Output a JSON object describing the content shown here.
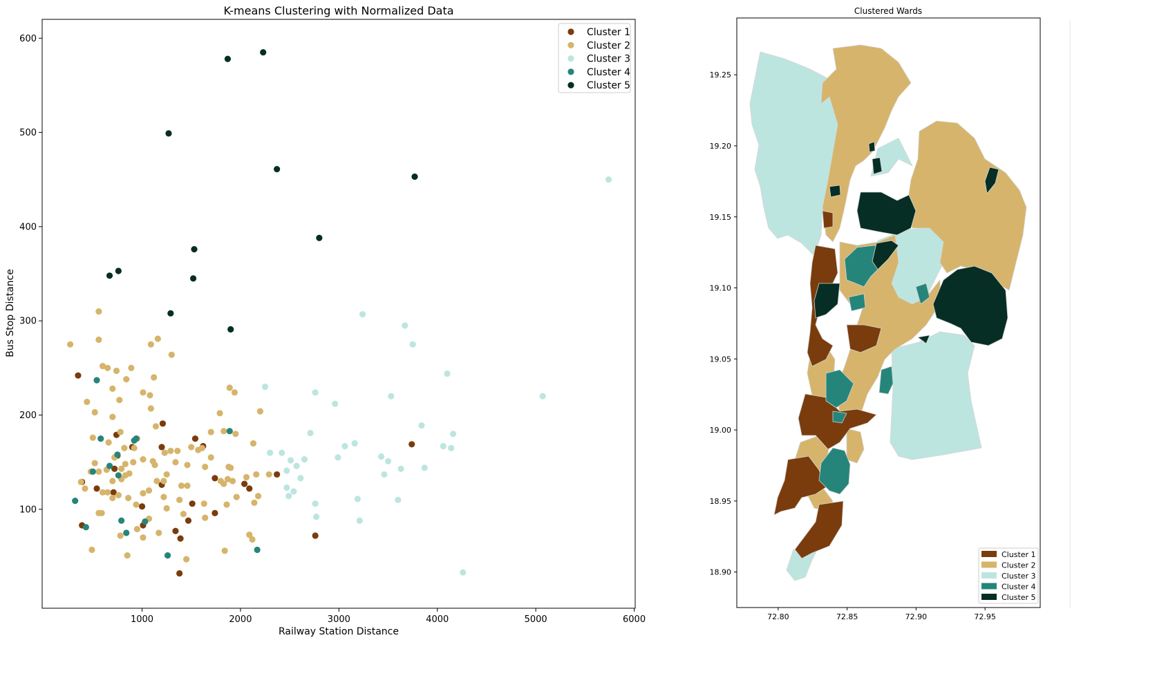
{
  "colors": {
    "cluster_1": "#7a3c0d",
    "cluster_2": "#d6b46b",
    "cluster_3": "#bde5e0",
    "cluster_4": "#26857a",
    "cluster_5": "#062e24",
    "ward_border": "#d4d4d4",
    "axes": "#000000"
  },
  "chart_data": [
    {
      "type": "scatter",
      "title": "K-means Clustering with Normalized Data",
      "xlabel": "Railway Station Distance",
      "ylabel": "Bus Stop Distance",
      "xlim": [
        0,
        6000
      ],
      "ylim": [
        0,
        620
      ],
      "xticks": [
        1000,
        2000,
        3000,
        4000,
        5000,
        6000
      ],
      "yticks": [
        100,
        200,
        300,
        400,
        500,
        600
      ],
      "grid": false,
      "legend_position": "top-right",
      "legend": [
        "Cluster 1",
        "Cluster 2",
        "Cluster 3",
        "Cluster 4",
        "Cluster 5"
      ],
      "series": [
        {
          "name": "Cluster 1",
          "color": "#7a3c0d",
          "points": [
            [
              350,
              242
            ],
            [
              390,
              129
            ],
            [
              390,
              83
            ],
            [
              540,
              122
            ],
            [
              740,
              179
            ],
            [
              750,
              157
            ],
            [
              720,
              143
            ],
            [
              710,
              118
            ],
            [
              900,
              166
            ],
            [
              1000,
              103
            ],
            [
              1010,
              83
            ],
            [
              1200,
              166
            ],
            [
              1210,
              191
            ],
            [
              1200,
              126
            ],
            [
              1340,
              77
            ],
            [
              1390,
              69
            ],
            [
              1380,
              32
            ],
            [
              1470,
              88
            ],
            [
              1510,
              106
            ],
            [
              1540,
              175
            ],
            [
              1620,
              167
            ],
            [
              1740,
              133
            ],
            [
              1740,
              96
            ],
            [
              2040,
              127
            ],
            [
              2090,
              122
            ],
            [
              2370,
              137
            ],
            [
              2760,
              72
            ],
            [
              3740,
              169
            ]
          ]
        },
        {
          "name": "Cluster 2",
          "color": "#d6b46b",
          "points": [
            [
              270,
              275
            ],
            [
              560,
              280
            ],
            [
              560,
              310
            ],
            [
              600,
              252
            ],
            [
              650,
              250
            ],
            [
              740,
              247
            ],
            [
              890,
              250
            ],
            [
              840,
              238
            ],
            [
              1090,
              275
            ],
            [
              1160,
              281
            ],
            [
              1300,
              264
            ],
            [
              1120,
              240
            ],
            [
              1010,
              224
            ],
            [
              1080,
              221
            ],
            [
              700,
              228
            ],
            [
              770,
              216
            ],
            [
              440,
              214
            ],
            [
              520,
              203
            ],
            [
              700,
              198
            ],
            [
              1090,
              207
            ],
            [
              1140,
              188
            ],
            [
              780,
              182
            ],
            [
              660,
              171
            ],
            [
              500,
              176
            ],
            [
              820,
              165
            ],
            [
              950,
              175
            ],
            [
              1010,
              153
            ],
            [
              1110,
              151
            ],
            [
              1130,
              147
            ],
            [
              1230,
              160
            ],
            [
              1290,
              162
            ],
            [
              1360,
              162
            ],
            [
              1500,
              166
            ],
            [
              1610,
              165
            ],
            [
              1700,
              155
            ],
            [
              1570,
              163
            ],
            [
              1640,
              145
            ],
            [
              1460,
              147
            ],
            [
              1340,
              150
            ],
            [
              1250,
              137
            ],
            [
              1220,
              130
            ],
            [
              1150,
              130
            ],
            [
              1070,
              120
            ],
            [
              1010,
              117
            ],
            [
              940,
              105
            ],
            [
              860,
              112
            ],
            [
              760,
              115
            ],
            [
              700,
              130
            ],
            [
              640,
              142
            ],
            [
              560,
              140
            ],
            [
              480,
              140
            ],
            [
              520,
              149
            ],
            [
              720,
              155
            ],
            [
              830,
              148
            ],
            [
              870,
              138
            ],
            [
              910,
              150
            ],
            [
              920,
              165
            ],
            [
              790,
              132
            ],
            [
              790,
              143
            ],
            [
              830,
              136
            ],
            [
              650,
              118
            ],
            [
              590,
              96
            ],
            [
              560,
              96
            ],
            [
              600,
              118
            ],
            [
              700,
              112
            ],
            [
              1010,
              70
            ],
            [
              1070,
              90
            ],
            [
              950,
              79
            ],
            [
              780,
              72
            ],
            [
              850,
              51
            ],
            [
              490,
              57
            ],
            [
              1170,
              75
            ],
            [
              1250,
              101
            ],
            [
              1220,
              113
            ],
            [
              1380,
              110
            ],
            [
              1400,
              125
            ],
            [
              1460,
              125
            ],
            [
              1420,
              95
            ],
            [
              1450,
              47
            ],
            [
              1630,
              106
            ],
            [
              1640,
              91
            ],
            [
              1700,
              182
            ],
            [
              1790,
              202
            ],
            [
              1830,
              183
            ],
            [
              1880,
              145
            ],
            [
              1900,
              144
            ],
            [
              1870,
              132
            ],
            [
              1830,
              127
            ],
            [
              1860,
              105
            ],
            [
              1920,
              130
            ],
            [
              1960,
              113
            ],
            [
              1840,
              56
            ],
            [
              2090,
              73
            ],
            [
              2120,
              68
            ],
            [
              2060,
              134
            ],
            [
              2160,
              137
            ],
            [
              2180,
              114
            ],
            [
              2140,
              107
            ],
            [
              2130,
              170
            ],
            [
              1950,
              180
            ],
            [
              1890,
              229
            ],
            [
              1940,
              224
            ],
            [
              2200,
              204
            ],
            [
              2290,
              137
            ],
            [
              1800,
              130
            ],
            [
              420,
              122
            ],
            [
              380,
              129
            ]
          ]
        },
        {
          "name": "Cluster 3",
          "color": "#bde5e0",
          "points": [
            [
              2250,
              230
            ],
            [
              2300,
              160
            ],
            [
              2420,
              160
            ],
            [
              2470,
              141
            ],
            [
              2510,
              152
            ],
            [
              2570,
              146
            ],
            [
              2610,
              133
            ],
            [
              2470,
              123
            ],
            [
              2540,
              119
            ],
            [
              2490,
              114
            ],
            [
              2650,
              153
            ],
            [
              2710,
              181
            ],
            [
              2760,
              224
            ],
            [
              2760,
              106
            ],
            [
              2770,
              92
            ],
            [
              2960,
              212
            ],
            [
              2990,
              155
            ],
            [
              3060,
              167
            ],
            [
              3160,
              170
            ],
            [
              3190,
              111
            ],
            [
              3210,
              88
            ],
            [
              3240,
              307
            ],
            [
              3430,
              156
            ],
            [
              3460,
              137
            ],
            [
              3500,
              151
            ],
            [
              3530,
              220
            ],
            [
              3600,
              110
            ],
            [
              3630,
              143
            ],
            [
              3670,
              295
            ],
            [
              3750,
              275
            ],
            [
              3840,
              189
            ],
            [
              3870,
              144
            ],
            [
              4060,
              167
            ],
            [
              4100,
              244
            ],
            [
              4140,
              165
            ],
            [
              4160,
              180
            ],
            [
              4260,
              33
            ],
            [
              5070,
              220
            ],
            [
              5740,
              450
            ]
          ]
        },
        {
          "name": "Cluster 4",
          "color": "#26857a",
          "points": [
            [
              320,
              109
            ],
            [
              430,
              81
            ],
            [
              500,
              140
            ],
            [
              540,
              237
            ],
            [
              580,
              175
            ],
            [
              670,
              146
            ],
            [
              750,
              158
            ],
            [
              760,
              136
            ],
            [
              790,
              88
            ],
            [
              840,
              75
            ],
            [
              920,
              173
            ],
            [
              940,
              175
            ],
            [
              1030,
              87
            ],
            [
              1260,
              51
            ],
            [
              1890,
              183
            ],
            [
              2170,
              57
            ]
          ]
        },
        {
          "name": "Cluster 5",
          "color": "#062e24",
          "points": [
            [
              670,
              348
            ],
            [
              760,
              353
            ],
            [
              1270,
              499
            ],
            [
              1290,
              308
            ],
            [
              1520,
              345
            ],
            [
              1530,
              376
            ],
            [
              1870,
              578
            ],
            [
              1900,
              291
            ],
            [
              2230,
              585
            ],
            [
              2370,
              461
            ],
            [
              2800,
              388
            ],
            [
              3770,
              453
            ]
          ]
        }
      ]
    },
    {
      "type": "map",
      "title": "Clustered Wards",
      "xlim": [
        72.77,
        72.99
      ],
      "ylim": [
        18.875,
        19.29
      ],
      "xticks": [
        "72.80",
        "72.85",
        "72.90",
        "72.95"
      ],
      "yticks": [
        "18.90",
        "18.95",
        "19.00",
        "19.05",
        "19.10",
        "19.15",
        "19.20",
        "19.25"
      ],
      "legend_position": "bottom-right",
      "legend": [
        "Cluster 1",
        "Cluster 2",
        "Cluster 3",
        "Cluster 4",
        "Cluster 5"
      ]
    }
  ]
}
